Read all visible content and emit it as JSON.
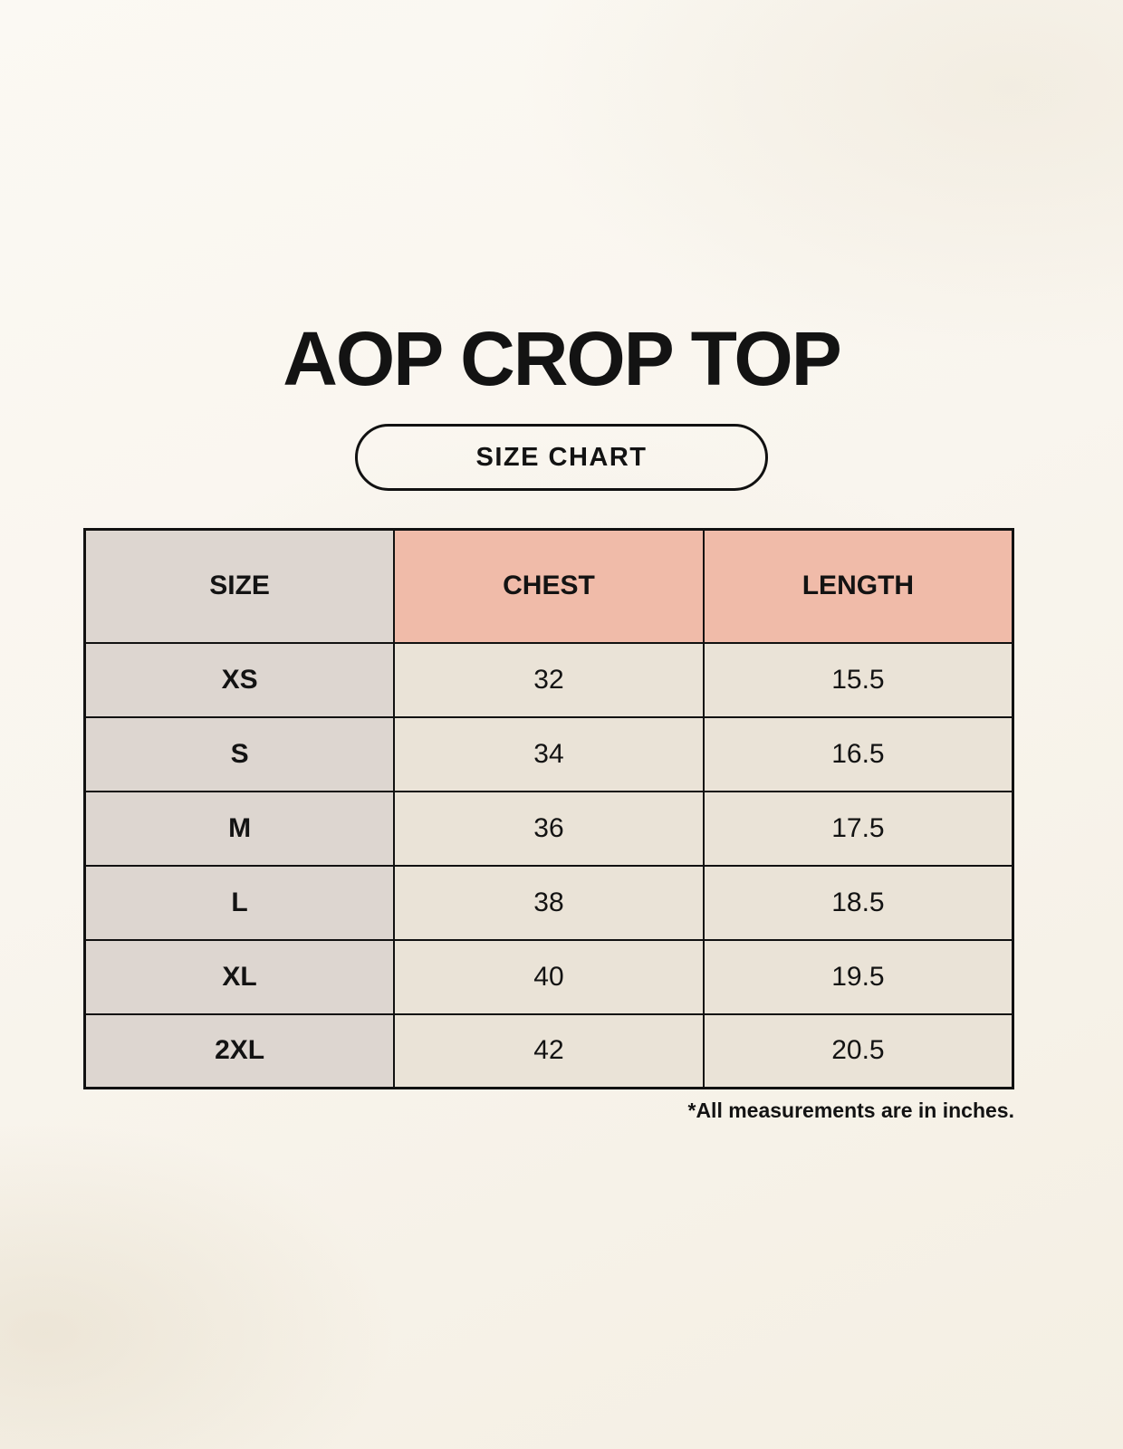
{
  "page": {
    "title": "AOP CROP TOP",
    "badge_label": "SIZE CHART",
    "footnote": "*All measurements are in inches."
  },
  "table": {
    "columns": [
      "SIZE",
      "CHEST",
      "LENGTH"
    ],
    "rows": [
      {
        "size": "XS",
        "chest": "32",
        "length": "15.5"
      },
      {
        "size": "S",
        "chest": "34",
        "length": "16.5"
      },
      {
        "size": "M",
        "chest": "36",
        "length": "17.5"
      },
      {
        "size": "L",
        "chest": "38",
        "length": "18.5"
      },
      {
        "size": "XL",
        "chest": "40",
        "length": "19.5"
      },
      {
        "size": "2XL",
        "chest": "42",
        "length": "20.5"
      }
    ]
  },
  "colors": {
    "background": "#f8f4ec",
    "size_column_bg": "#ddd6d0",
    "accent_header_bg": "#f0bba9",
    "data_cell_bg": "#eae3d7",
    "border": "#111111",
    "text": "#131313"
  }
}
